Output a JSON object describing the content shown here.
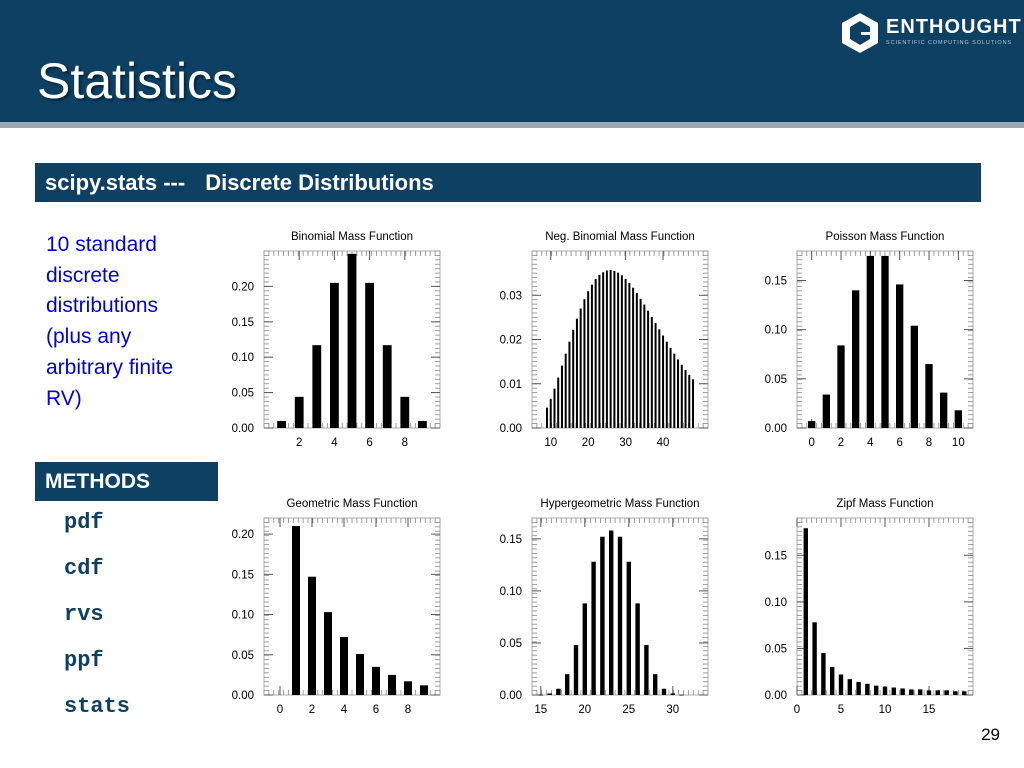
{
  "slide": {
    "title": "Statistics",
    "logo": {
      "name": "ENTHOUGHT",
      "tagline": "SCIENTIFIC COMPUTING SOLUTIONS"
    },
    "section_bar": {
      "module": "scipy.stats ---",
      "topic": "Discrete Distributions"
    },
    "description": "10 standard discrete distributions (plus any arbitrary finite RV)",
    "methods_header": "METHODS",
    "methods": [
      "pdf",
      "cdf",
      "rvs",
      "ppf",
      "stats"
    ],
    "page_number": "29"
  },
  "chart_data": [
    {
      "type": "bar",
      "title": "Binomial Mass Function",
      "x": [
        1,
        2,
        3,
        4,
        5,
        6,
        7,
        8,
        9
      ],
      "values": [
        0.01,
        0.044,
        0.117,
        0.205,
        0.246,
        0.205,
        0.117,
        0.044,
        0.01
      ],
      "xlim": [
        0,
        10
      ],
      "ylim": [
        0,
        0.25
      ],
      "xticks": [
        2,
        4,
        6,
        8
      ],
      "yticks": [
        0.0,
        0.05,
        0.1,
        0.15,
        0.2
      ]
    },
    {
      "type": "bar",
      "title": "Neg. Binomial Mass Function",
      "x": [
        9,
        10,
        11,
        12,
        13,
        14,
        15,
        16,
        17,
        18,
        19,
        20,
        21,
        22,
        23,
        24,
        25,
        26,
        27,
        28,
        29,
        30,
        31,
        32,
        33,
        34,
        35,
        36,
        37,
        38,
        39,
        40,
        41,
        42,
        43,
        44,
        45,
        46,
        47,
        48
      ],
      "values": [
        0.0046,
        0.0066,
        0.0089,
        0.0114,
        0.0141,
        0.0168,
        0.0195,
        0.0222,
        0.0247,
        0.027,
        0.0291,
        0.0309,
        0.0324,
        0.0337,
        0.0346,
        0.0352,
        0.0356,
        0.0357,
        0.0355,
        0.0351,
        0.0345,
        0.0337,
        0.0328,
        0.0317,
        0.0305,
        0.0292,
        0.0279,
        0.0265,
        0.0251,
        0.0237,
        0.0223,
        0.0209,
        0.0195,
        0.0181,
        0.0168,
        0.0155,
        0.0143,
        0.0131,
        0.012,
        0.011
      ],
      "xlim": [
        5,
        52
      ],
      "ylim": [
        0,
        0.04
      ],
      "xticks": [
        10,
        20,
        30,
        40
      ],
      "yticks": [
        0.0,
        0.01,
        0.02,
        0.03
      ]
    },
    {
      "type": "bar",
      "title": "Poisson Mass Function",
      "x": [
        0,
        1,
        2,
        3,
        4,
        5,
        6,
        7,
        8,
        9,
        10
      ],
      "values": [
        0.007,
        0.034,
        0.084,
        0.14,
        0.175,
        0.175,
        0.146,
        0.104,
        0.065,
        0.036,
        0.018
      ],
      "xlim": [
        -1,
        11
      ],
      "ylim": [
        0,
        0.18
      ],
      "xticks": [
        0,
        2,
        4,
        6,
        8,
        10
      ],
      "yticks": [
        0.0,
        0.05,
        0.1,
        0.15
      ]
    },
    {
      "type": "bar",
      "title": "Geometric Mass Function",
      "x": [
        1,
        2,
        3,
        4,
        5,
        6,
        7,
        8,
        9
      ],
      "values": [
        0.21,
        0.147,
        0.103,
        0.072,
        0.051,
        0.035,
        0.025,
        0.017,
        0.012
      ],
      "xlim": [
        -1,
        10
      ],
      "ylim": [
        0,
        0.22
      ],
      "xticks": [
        0,
        2,
        4,
        6,
        8
      ],
      "yticks": [
        0.0,
        0.05,
        0.1,
        0.15,
        0.2
      ]
    },
    {
      "type": "bar",
      "title": "Hypergeometric Mass Function",
      "x": [
        15,
        16,
        17,
        18,
        19,
        20,
        21,
        22,
        23,
        24,
        25,
        26,
        27,
        28,
        29,
        30,
        31
      ],
      "values": [
        0.0003,
        0.0015,
        0.006,
        0.02,
        0.048,
        0.088,
        0.128,
        0.152,
        0.158,
        0.152,
        0.128,
        0.088,
        0.048,
        0.02,
        0.006,
        0.0015,
        0.0003
      ],
      "xlim": [
        14,
        34
      ],
      "ylim": [
        0,
        0.17
      ],
      "xticks": [
        15,
        20,
        25,
        30
      ],
      "yticks": [
        0.0,
        0.05,
        0.1,
        0.15
      ]
    },
    {
      "type": "bar",
      "title": "Zipf Mass Function",
      "x": [
        1,
        2,
        3,
        4,
        5,
        6,
        7,
        8,
        9,
        10,
        11,
        12,
        13,
        14,
        15,
        16,
        17,
        18,
        19
      ],
      "values": [
        0.179,
        0.078,
        0.045,
        0.03,
        0.022,
        0.017,
        0.014,
        0.012,
        0.01,
        0.009,
        0.008,
        0.007,
        0.006,
        0.006,
        0.005,
        0.005,
        0.005,
        0.004,
        0.004
      ],
      "xlim": [
        0,
        20
      ],
      "ylim": [
        0,
        0.19
      ],
      "xticks": [
        0,
        5,
        10,
        15
      ],
      "yticks": [
        0.0,
        0.05,
        0.1,
        0.15
      ]
    }
  ]
}
